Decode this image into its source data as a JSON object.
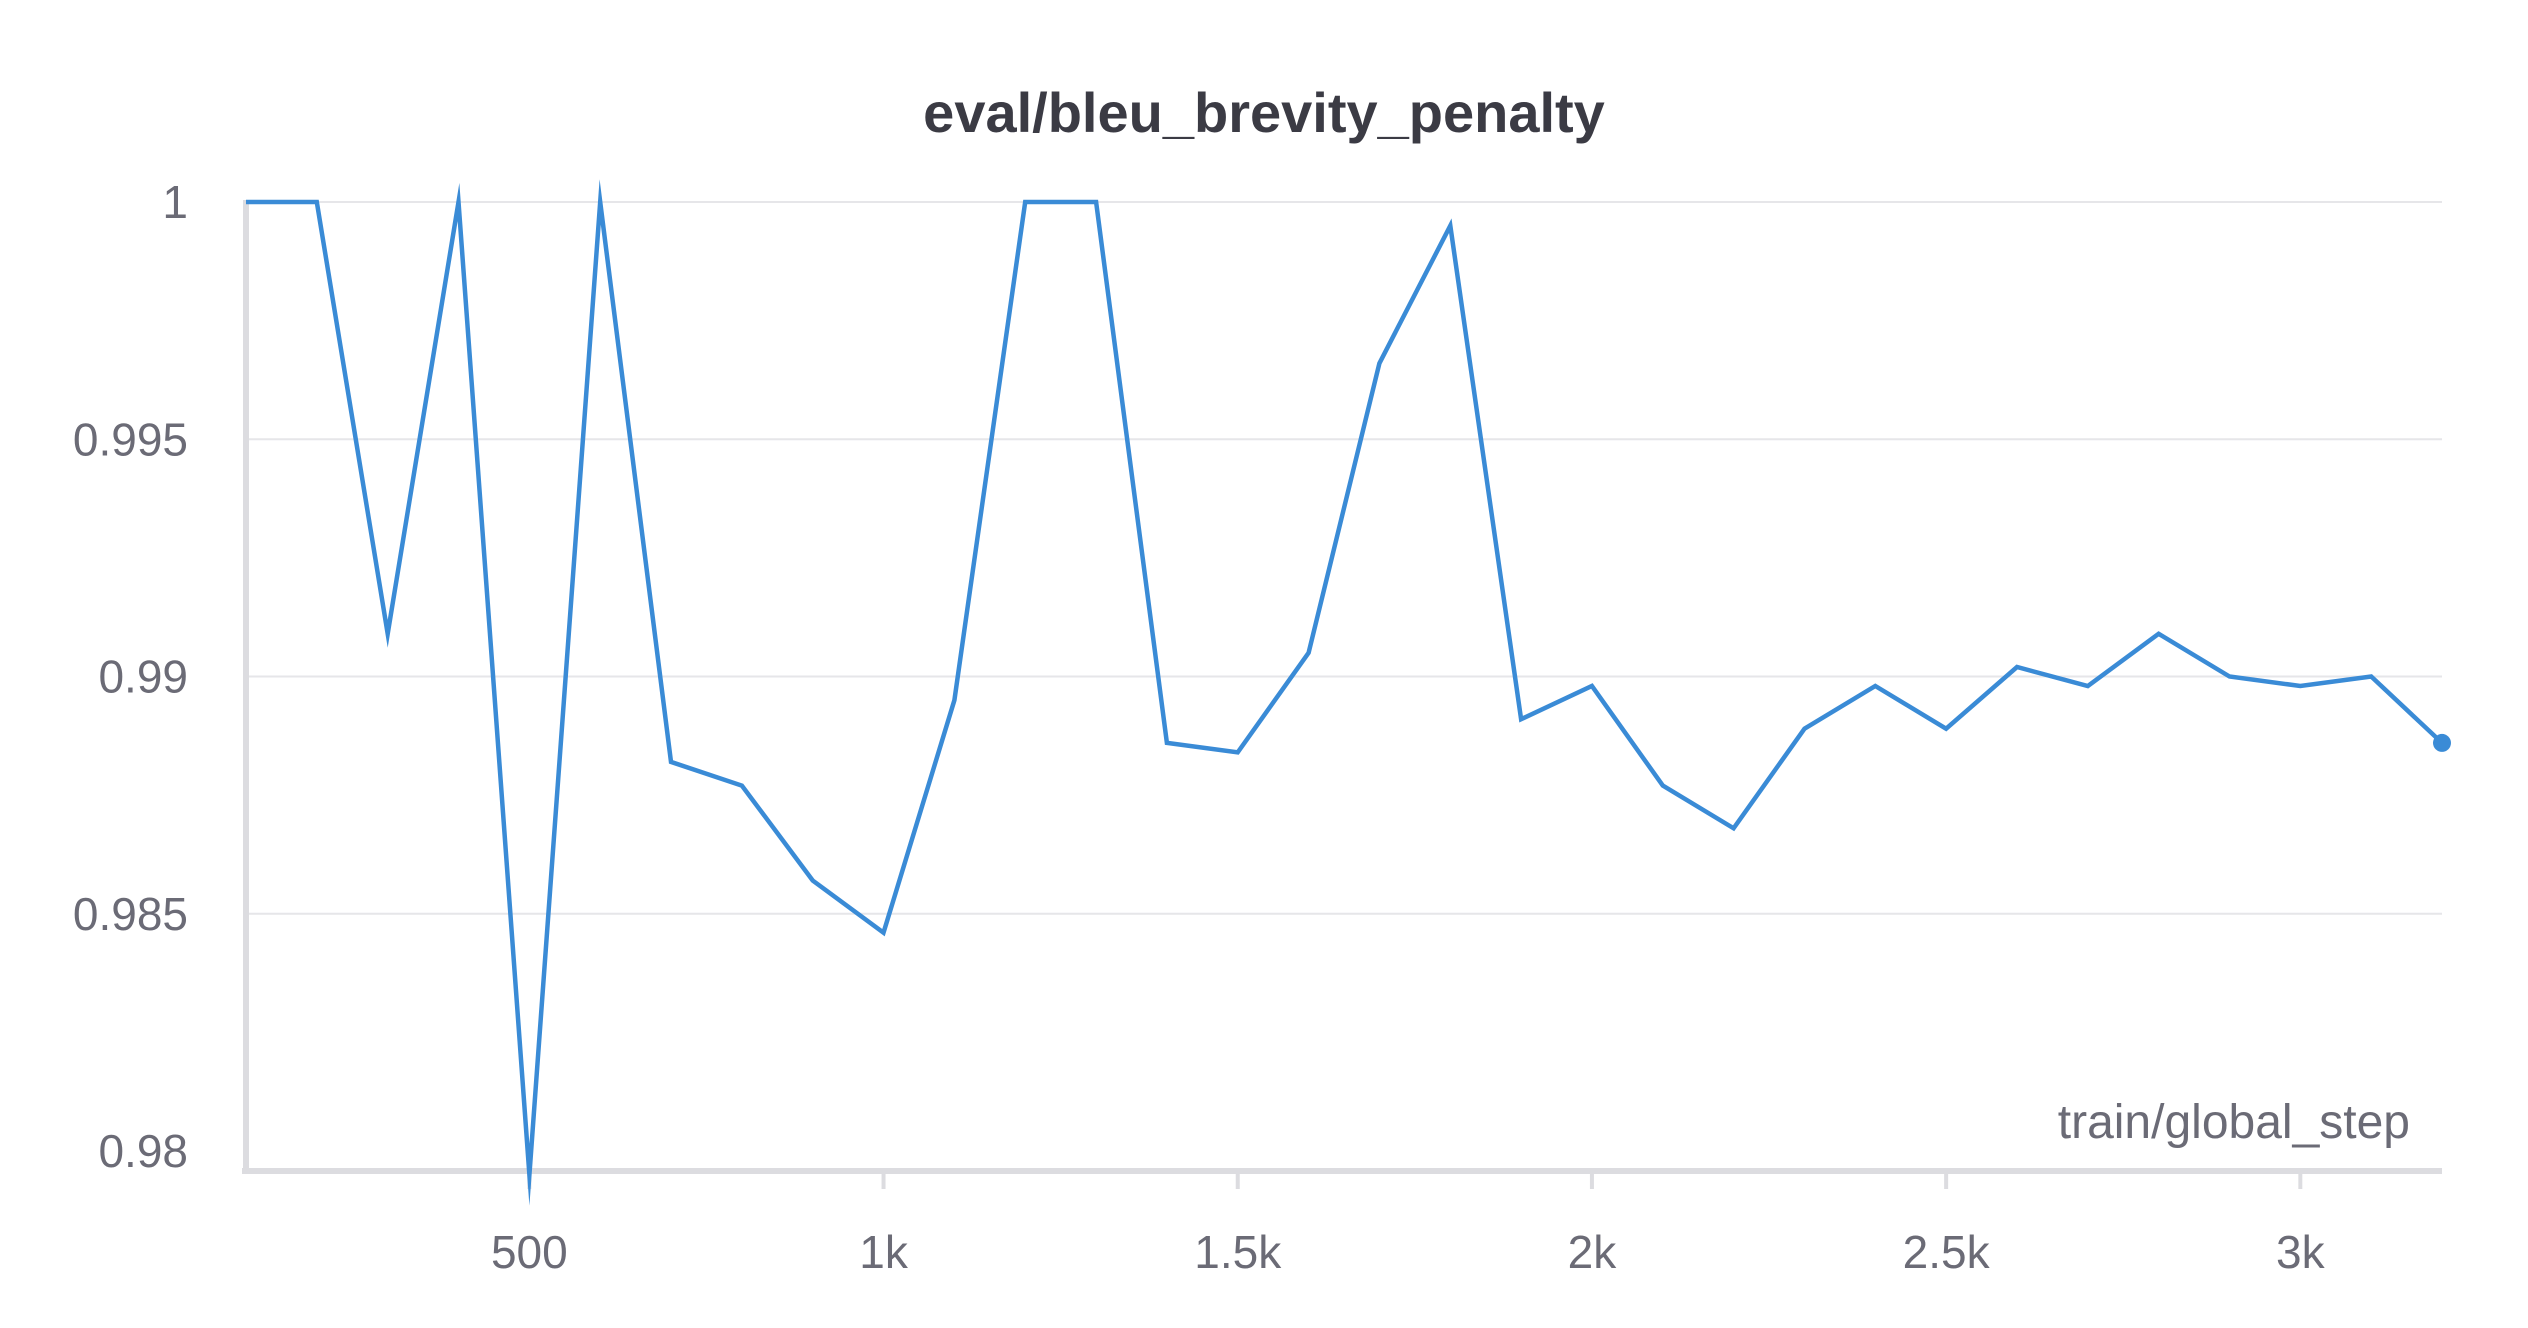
{
  "chart_data": {
    "type": "line",
    "title": "eval/bleu_brevity_penalty",
    "xlabel": "train/global_step",
    "ylabel": "",
    "xlim": [
      100,
      3200
    ],
    "ylim": [
      0.98,
      1.0
    ],
    "x_ticks": [
      500,
      1000,
      1500,
      2000,
      2500,
      3000
    ],
    "x_tick_labels": [
      "500",
      "1k",
      "1.5k",
      "2k",
      "2.5k",
      "3k"
    ],
    "y_ticks": [
      0.98,
      0.985,
      0.99,
      0.995,
      1.0
    ],
    "y_tick_labels": [
      "0.98",
      "0.985",
      "0.99",
      "0.995",
      "1"
    ],
    "grid": true,
    "legend": "none",
    "series": [
      {
        "color": "#3a8bd6",
        "x": [
          100,
          200,
          300,
          400,
          500,
          600,
          700,
          800,
          900,
          1000,
          1100,
          1200,
          1300,
          1400,
          1500,
          1600,
          1700,
          1800,
          1900,
          2000,
          2100,
          2200,
          2300,
          2400,
          2500,
          2600,
          2700,
          2800,
          2900,
          3000,
          3100,
          3200
        ],
        "y": [
          1.0,
          1.0,
          0.9909,
          1.0,
          0.9795,
          1.0,
          0.9882,
          0.9877,
          0.9857,
          0.9846,
          0.9895,
          1.0,
          1.0,
          0.9886,
          0.9884,
          0.9905,
          0.9966,
          0.9995,
          0.9891,
          0.9898,
          0.9877,
          0.9868,
          0.9889,
          0.9898,
          0.9889,
          0.9902,
          0.9898,
          0.9909,
          0.99,
          0.9898,
          0.99,
          0.9886
        ]
      }
    ]
  }
}
